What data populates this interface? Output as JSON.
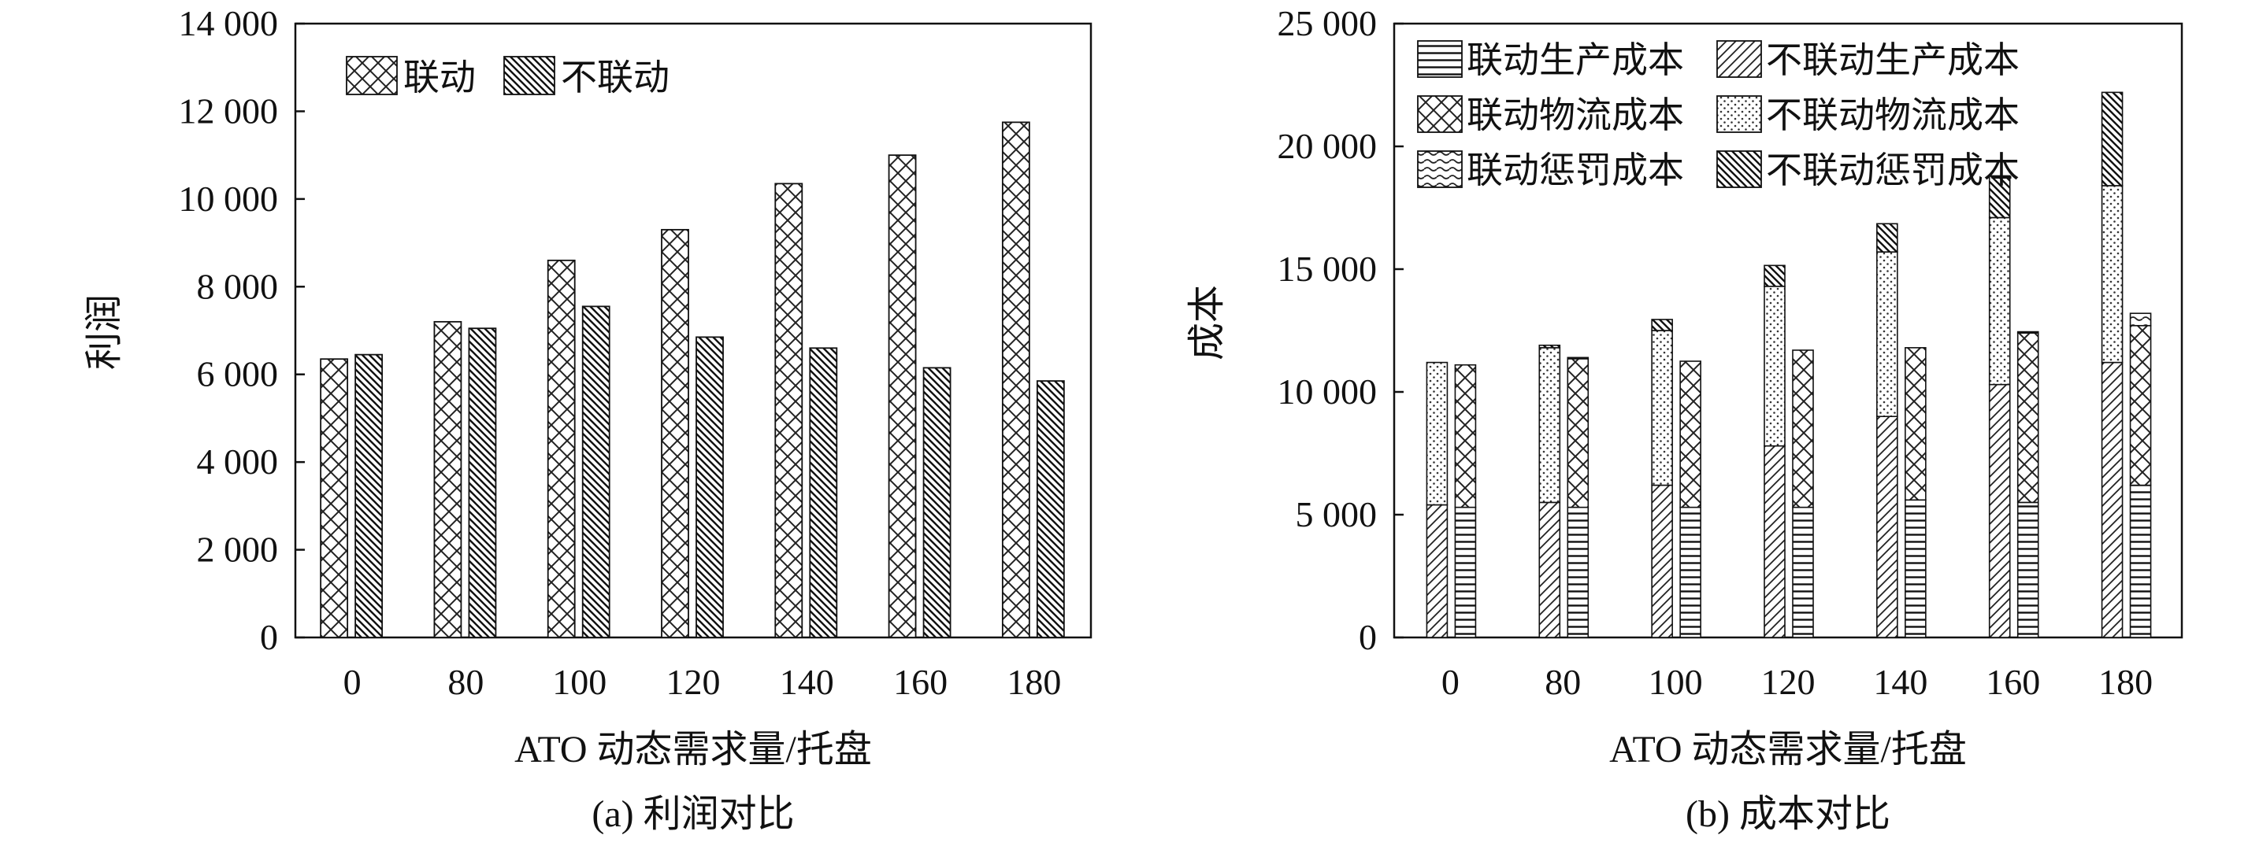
{
  "chart_data": [
    {
      "type": "bar",
      "caption": "(a) 利润对比",
      "xlabel": "ATO 动态需求量/托盘",
      "ylabel": "利润",
      "categories": [
        "0",
        "80",
        "100",
        "120",
        "140",
        "160",
        "180"
      ],
      "ylim": [
        0,
        14000
      ],
      "yticks": [
        "0",
        "2 000",
        "4 000",
        "6 000",
        "8 000",
        "10 000",
        "12 000",
        "14 000"
      ],
      "legend_position": "top-left",
      "grid": false,
      "series": [
        {
          "name": "联动",
          "pattern": "crosshatch",
          "values": [
            6350,
            7200,
            8600,
            9300,
            10350,
            11000,
            11750
          ]
        },
        {
          "name": "不联动",
          "pattern": "dense-diagonal",
          "values": [
            6450,
            7050,
            7550,
            6850,
            6600,
            6150,
            5850
          ]
        }
      ]
    },
    {
      "type": "bar",
      "stacked": true,
      "caption": "(b) 成本对比",
      "xlabel": "ATO 动态需求量/托盘",
      "ylabel": "成本",
      "categories": [
        "0",
        "80",
        "100",
        "120",
        "140",
        "160",
        "180"
      ],
      "ylim": [
        0,
        25000
      ],
      "yticks": [
        "0",
        "5 000",
        "10 000",
        "15 000",
        "20 000",
        "25 000"
      ],
      "legend_position": "top-left",
      "grid": false,
      "series": [
        {
          "name": "联动生产成本",
          "pattern": "horizontal-lines",
          "group": "不联动",
          "stack_order": 1,
          "values": [
            5300,
            5300,
            5300,
            5300,
            5600,
            5500,
            6200
          ]
        },
        {
          "name": "不联动生产成本",
          "pattern": "diagonal",
          "group": "联动",
          "stack_order": 1,
          "values": [
            5400,
            5500,
            6200,
            7800,
            9000,
            10300,
            11200
          ]
        },
        {
          "name": "联动物流成本",
          "pattern": "crosshatch",
          "group": "不联动",
          "stack_order": 2,
          "values": [
            5800,
            6050,
            5950,
            6400,
            6200,
            6900,
            6500
          ]
        },
        {
          "name": "不联动物流成本",
          "pattern": "dots",
          "group": "联动",
          "stack_order": 2,
          "values": [
            5800,
            6300,
            6300,
            6500,
            6700,
            6800,
            7200
          ]
        },
        {
          "name": "联动惩罚成本",
          "pattern": "waves",
          "group": "不联动",
          "stack_order": 3,
          "values": [
            0,
            50,
            0,
            0,
            0,
            50,
            500
          ]
        },
        {
          "name": "不联动惩罚成本",
          "pattern": "dense-diagonal",
          "group": "联动",
          "stack_order": 3,
          "values": [
            0,
            100,
            450,
            850,
            1150,
            1700,
            3800
          ]
        }
      ]
    }
  ]
}
